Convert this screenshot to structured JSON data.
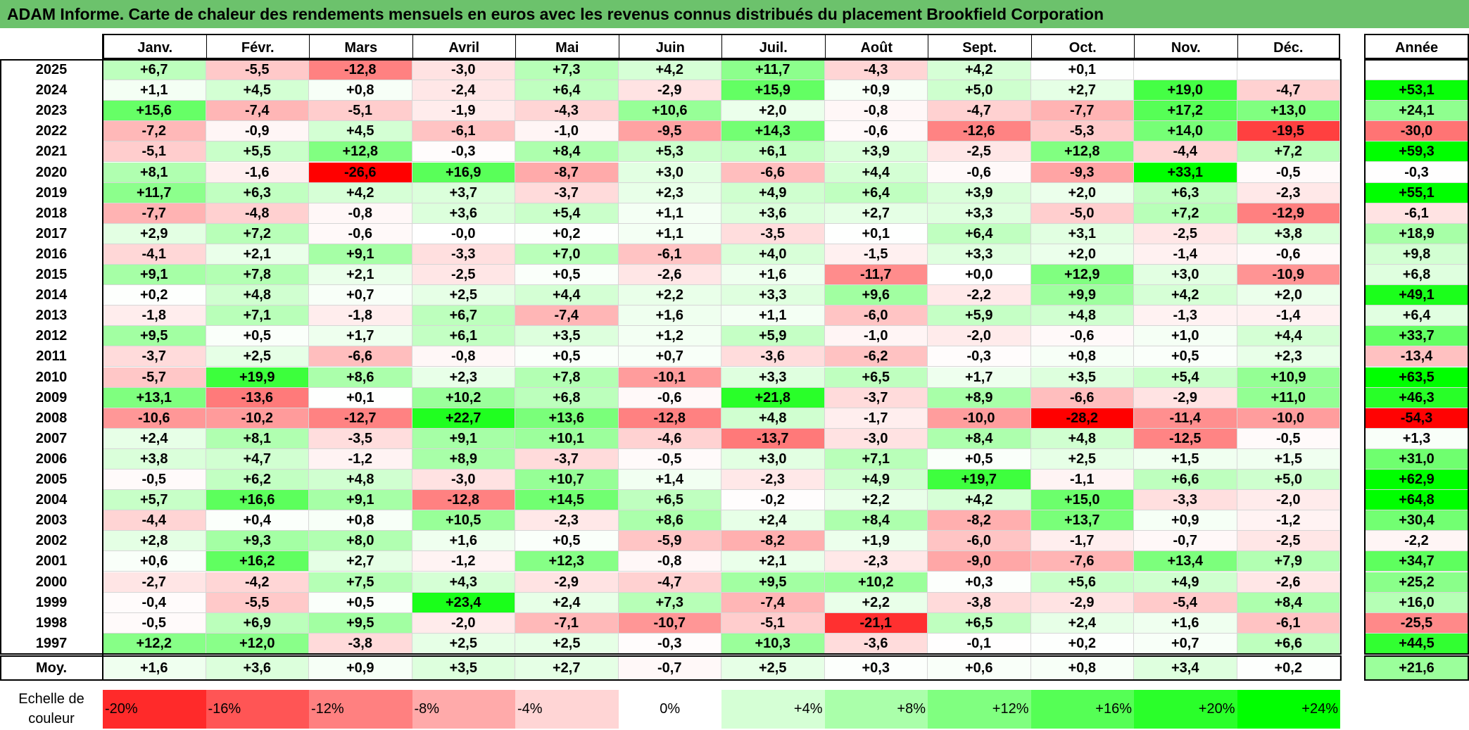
{
  "title": "ADAM Informe. Carte de chaleur des rendements mensuels en euros avec les revenus connus distribués du placement Brookfield Corporation",
  "colors": {
    "title_bg": "#6cc26c",
    "negative_max": "#ff0000",
    "neutral": "#ffffff",
    "positive_max": "#00ff00"
  },
  "chart_data": {
    "type": "heatmap",
    "title": "ADAM Informe. Carte de chaleur des rendements mensuels en euros avec les revenus connus distribués du placement Brookfield Corporation",
    "columns": [
      "Janv.",
      "Févr.",
      "Mars",
      "Avril",
      "Mai",
      "Juin",
      "Juil.",
      "Août",
      "Sept.",
      "Oct.",
      "Nov.",
      "Déc."
    ],
    "annual_header": "Année",
    "rows": [
      {
        "year": "2025",
        "values": [
          "+6,7",
          "-5,5",
          "-12,8",
          "-3,0",
          "+7,3",
          "+4,2",
          "+11,7",
          "-4,3",
          "+4,2",
          "+0,1",
          "",
          ""
        ],
        "annual": ""
      },
      {
        "year": "2024",
        "values": [
          "+1,1",
          "+4,5",
          "+0,8",
          "-2,4",
          "+6,4",
          "-2,9",
          "+15,9",
          "+0,9",
          "+5,0",
          "+2,7",
          "+19,0",
          "-4,7"
        ],
        "annual": "+53,1"
      },
      {
        "year": "2023",
        "values": [
          "+15,6",
          "-7,4",
          "-5,1",
          "-1,9",
          "-4,3",
          "+10,6",
          "+2,0",
          "-0,8",
          "-4,7",
          "-7,7",
          "+17,2",
          "+13,0"
        ],
        "annual": "+24,1"
      },
      {
        "year": "2022",
        "values": [
          "-7,2",
          "-0,9",
          "+4,5",
          "-6,1",
          "-1,0",
          "-9,5",
          "+14,3",
          "-0,6",
          "-12,6",
          "-5,3",
          "+14,0",
          "-19,5"
        ],
        "annual": "-30,0"
      },
      {
        "year": "2021",
        "values": [
          "-5,1",
          "+5,5",
          "+12,8",
          "-0,3",
          "+8,4",
          "+5,3",
          "+6,1",
          "+3,9",
          "-2,5",
          "+12,8",
          "-4,4",
          "+7,2"
        ],
        "annual": "+59,3"
      },
      {
        "year": "2020",
        "values": [
          "+8,1",
          "-1,6",
          "-26,6",
          "+16,9",
          "-8,7",
          "+3,0",
          "-6,6",
          "+4,4",
          "-0,6",
          "-9,3",
          "+33,1",
          "-0,5"
        ],
        "annual": "-0,3"
      },
      {
        "year": "2019",
        "values": [
          "+11,7",
          "+6,3",
          "+4,2",
          "+3,7",
          "-3,7",
          "+2,3",
          "+4,9",
          "+6,4",
          "+3,9",
          "+2,0",
          "+6,3",
          "-2,3"
        ],
        "annual": "+55,1"
      },
      {
        "year": "2018",
        "values": [
          "-7,7",
          "-4,8",
          "-0,8",
          "+3,6",
          "+5,4",
          "+1,1",
          "+3,6",
          "+2,7",
          "+3,3",
          "-5,0",
          "+7,2",
          "-12,9"
        ],
        "annual": "-6,1"
      },
      {
        "year": "2017",
        "values": [
          "+2,9",
          "+7,2",
          "-0,6",
          "-0,0",
          "+0,2",
          "+1,1",
          "-3,5",
          "+0,1",
          "+6,4",
          "+3,1",
          "-2,5",
          "+3,8"
        ],
        "annual": "+18,9"
      },
      {
        "year": "2016",
        "values": [
          "-4,1",
          "+2,1",
          "+9,1",
          "-3,3",
          "+7,0",
          "-6,1",
          "+4,0",
          "-1,5",
          "+3,3",
          "+2,0",
          "-1,4",
          "-0,6"
        ],
        "annual": "+9,8"
      },
      {
        "year": "2015",
        "values": [
          "+9,1",
          "+7,8",
          "+2,1",
          "-2,5",
          "+0,5",
          "-2,6",
          "+1,6",
          "-11,7",
          "+0,0",
          "+12,9",
          "+3,0",
          "-10,9"
        ],
        "annual": "+6,8"
      },
      {
        "year": "2014",
        "values": [
          "+0,2",
          "+4,8",
          "+0,7",
          "+2,5",
          "+4,4",
          "+2,2",
          "+3,3",
          "+9,6",
          "-2,2",
          "+9,9",
          "+4,2",
          "+2,0"
        ],
        "annual": "+49,1"
      },
      {
        "year": "2013",
        "values": [
          "-1,8",
          "+7,1",
          "-1,8",
          "+6,7",
          "-7,4",
          "+1,6",
          "+1,1",
          "-6,0",
          "+5,9",
          "+4,8",
          "-1,3",
          "-1,4"
        ],
        "annual": "+6,4"
      },
      {
        "year": "2012",
        "values": [
          "+9,5",
          "+0,5",
          "+1,7",
          "+6,1",
          "+3,5",
          "+1,2",
          "+5,9",
          "-1,0",
          "-2,0",
          "-0,6",
          "+1,0",
          "+4,4"
        ],
        "annual": "+33,7"
      },
      {
        "year": "2011",
        "values": [
          "-3,7",
          "+2,5",
          "-6,6",
          "-0,8",
          "+0,5",
          "+0,7",
          "-3,6",
          "-6,2",
          "-0,3",
          "+0,8",
          "+0,5",
          "+2,3"
        ],
        "annual": "-13,4"
      },
      {
        "year": "2010",
        "values": [
          "-5,7",
          "+19,9",
          "+8,6",
          "+2,3",
          "+7,8",
          "-10,1",
          "+3,3",
          "+6,5",
          "+1,7",
          "+3,5",
          "+5,4",
          "+10,9"
        ],
        "annual": "+63,5"
      },
      {
        "year": "2009",
        "values": [
          "+13,1",
          "-13,6",
          "+0,1",
          "+10,2",
          "+6,8",
          "-0,6",
          "+21,8",
          "-3,7",
          "+8,9",
          "-6,6",
          "-2,9",
          "+11,0"
        ],
        "annual": "+46,3"
      },
      {
        "year": "2008",
        "values": [
          "-10,6",
          "-10,2",
          "-12,7",
          "+22,7",
          "+13,6",
          "-12,8",
          "+4,8",
          "-1,7",
          "-10,0",
          "-28,2",
          "-11,4",
          "-10,0"
        ],
        "annual": "-54,3"
      },
      {
        "year": "2007",
        "values": [
          "+2,4",
          "+8,1",
          "-3,5",
          "+9,1",
          "+10,1",
          "-4,6",
          "-13,7",
          "-3,0",
          "+8,4",
          "+4,8",
          "-12,5",
          "-0,5"
        ],
        "annual": "+1,3"
      },
      {
        "year": "2006",
        "values": [
          "+3,8",
          "+4,7",
          "-1,2",
          "+8,9",
          "-3,7",
          "-0,5",
          "+3,0",
          "+7,1",
          "+0,5",
          "+2,5",
          "+1,5",
          "+1,5"
        ],
        "annual": "+31,0"
      },
      {
        "year": "2005",
        "values": [
          "-0,5",
          "+6,2",
          "+4,8",
          "-3,0",
          "+10,7",
          "+1,4",
          "-2,3",
          "+4,9",
          "+19,7",
          "-1,1",
          "+6,6",
          "+5,0"
        ],
        "annual": "+62,9"
      },
      {
        "year": "2004",
        "values": [
          "+5,7",
          "+16,6",
          "+9,1",
          "-12,8",
          "+14,5",
          "+6,5",
          "-0,2",
          "+2,2",
          "+4,2",
          "+15,0",
          "-3,3",
          "-2,0"
        ],
        "annual": "+64,8"
      },
      {
        "year": "2003",
        "values": [
          "-4,4",
          "+0,4",
          "+0,8",
          "+10,5",
          "-2,3",
          "+8,6",
          "+2,4",
          "+8,4",
          "-8,2",
          "+13,7",
          "+0,9",
          "-1,2"
        ],
        "annual": "+30,4"
      },
      {
        "year": "2002",
        "values": [
          "+2,8",
          "+9,3",
          "+8,0",
          "+1,6",
          "+0,5",
          "-5,9",
          "-8,2",
          "+1,9",
          "-6,0",
          "-1,7",
          "-0,7",
          "-2,5"
        ],
        "annual": "-2,2"
      },
      {
        "year": "2001",
        "values": [
          "+0,6",
          "+16,2",
          "+2,7",
          "-1,2",
          "+12,3",
          "-0,8",
          "+2,1",
          "-2,3",
          "-9,0",
          "-7,6",
          "+13,4",
          "+7,9"
        ],
        "annual": "+34,7"
      },
      {
        "year": "2000",
        "values": [
          "-2,7",
          "-4,2",
          "+7,5",
          "+4,3",
          "-2,9",
          "-4,7",
          "+9,5",
          "+10,2",
          "+0,3",
          "+5,6",
          "+4,9",
          "-2,6"
        ],
        "annual": "+25,2"
      },
      {
        "year": "1999",
        "values": [
          "-0,4",
          "-5,5",
          "+0,5",
          "+23,4",
          "+2,4",
          "+7,3",
          "-7,4",
          "+2,2",
          "-3,8",
          "-2,9",
          "-5,4",
          "+8,4"
        ],
        "annual": "+16,0"
      },
      {
        "year": "1998",
        "values": [
          "-0,5",
          "+6,9",
          "+9,5",
          "-2,0",
          "-7,1",
          "-10,7",
          "-5,1",
          "-21,1",
          "+6,5",
          "+2,4",
          "+1,6",
          "-6,1"
        ],
        "annual": "-25,5"
      },
      {
        "year": "1997",
        "values": [
          "+12,2",
          "+12,0",
          "-3,8",
          "+2,5",
          "+2,5",
          "-0,3",
          "+10,3",
          "-3,6",
          "-0,1",
          "+0,2",
          "+0,7",
          "+6,6"
        ],
        "annual": "+44,5"
      }
    ],
    "average": {
      "label": "Moy.",
      "values": [
        "+1,6",
        "+3,6",
        "+0,9",
        "+3,5",
        "+2,7",
        "-0,7",
        "+2,5",
        "+0,3",
        "+0,6",
        "+0,8",
        "+3,4",
        "+0,2"
      ],
      "annual": "+21,6"
    },
    "scale": {
      "label_line1": "Echelle de",
      "label_line2": "couleur",
      "steps": [
        {
          "label": "-20%",
          "value": -20
        },
        {
          "label": "-16%",
          "value": -16
        },
        {
          "label": "-12%",
          "value": -12
        },
        {
          "label": "-8%",
          "value": -8
        },
        {
          "label": "-4%",
          "value": -4
        },
        {
          "label": "0%",
          "value": 0
        },
        {
          "label": "+4%",
          "value": 4
        },
        {
          "label": "+8%",
          "value": 8
        },
        {
          "label": "+12%",
          "value": 12
        },
        {
          "label": "+16%",
          "value": 16
        },
        {
          "label": "+20%",
          "value": 20
        },
        {
          "label": "+24%",
          "value": 24
        }
      ]
    }
  }
}
